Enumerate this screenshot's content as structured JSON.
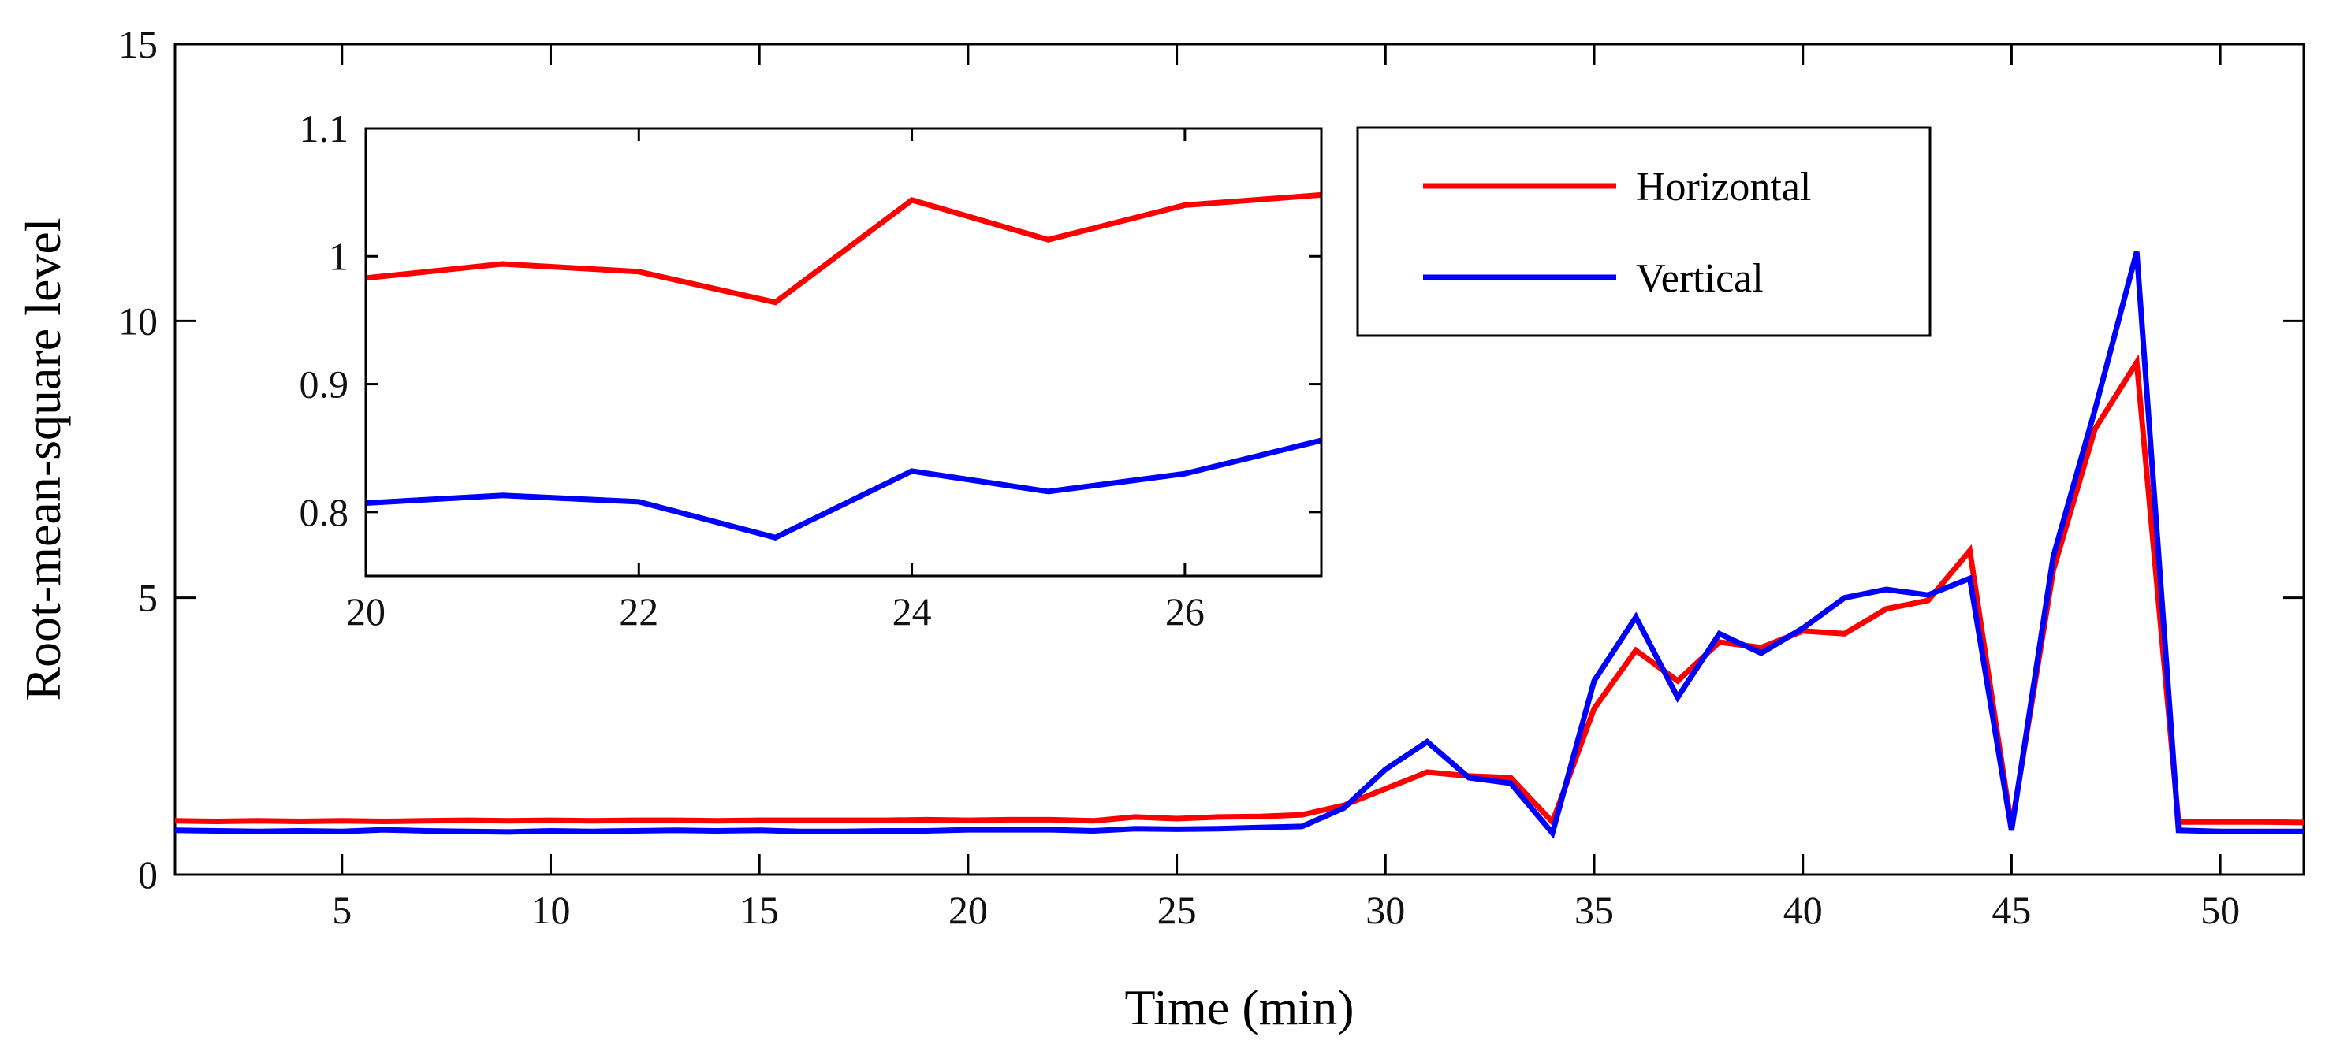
{
  "chart_data": [
    {
      "type": "line",
      "role": "main",
      "title": "",
      "xlabel": "Time (min)",
      "ylabel": "Root-mean-square level",
      "xlim": [
        1,
        52
      ],
      "ylim": [
        0,
        15
      ],
      "xticks": [
        5,
        10,
        15,
        20,
        25,
        30,
        35,
        40,
        45,
        50
      ],
      "xtick_labels": [
        "5",
        "10",
        "15",
        "20",
        "25",
        "30",
        "35",
        "40",
        "45",
        "50"
      ],
      "yticks": [
        0,
        5,
        10,
        15
      ],
      "ytick_labels": [
        "0",
        "5",
        "10",
        "15"
      ],
      "grid": false,
      "legend_position": "top-right",
      "x": [
        1,
        2,
        3,
        4,
        5,
        6,
        7,
        8,
        9,
        10,
        11,
        12,
        13,
        14,
        15,
        16,
        17,
        18,
        19,
        20,
        21,
        22,
        23,
        24,
        25,
        26,
        27,
        28,
        29,
        30,
        31,
        32,
        33,
        34,
        35,
        36,
        37,
        38,
        39,
        40,
        41,
        42,
        43,
        44,
        45,
        46,
        47,
        48,
        49,
        50,
        51,
        52
      ],
      "series": [
        {
          "name": "Horizontal",
          "color": "#ff0000",
          "values": [
            0.97,
            0.96,
            0.97,
            0.96,
            0.97,
            0.96,
            0.97,
            0.98,
            0.97,
            0.98,
            0.97,
            0.98,
            0.98,
            0.97,
            0.98,
            0.98,
            0.98,
            0.98,
            0.99,
            0.98,
            0.99,
            0.99,
            0.97,
            1.04,
            1.01,
            1.04,
            1.05,
            1.08,
            1.25,
            1.55,
            1.85,
            1.78,
            1.75,
            0.95,
            3.0,
            4.05,
            3.5,
            4.2,
            4.1,
            4.4,
            4.35,
            4.8,
            4.95,
            5.85,
            0.85,
            5.5,
            8.05,
            9.25,
            0.95,
            0.95,
            0.95,
            0.94
          ]
        },
        {
          "name": "Vertical",
          "color": "#0000ff",
          "values": [
            0.8,
            0.79,
            0.78,
            0.79,
            0.78,
            0.81,
            0.79,
            0.78,
            0.77,
            0.79,
            0.78,
            0.79,
            0.8,
            0.79,
            0.8,
            0.78,
            0.78,
            0.79,
            0.79,
            0.81,
            0.81,
            0.81,
            0.79,
            0.83,
            0.82,
            0.83,
            0.85,
            0.87,
            1.2,
            1.9,
            2.4,
            1.75,
            1.65,
            0.75,
            3.5,
            4.65,
            3.2,
            4.35,
            4.0,
            4.45,
            5.0,
            5.15,
            5.05,
            5.35,
            0.8,
            5.75,
            8.4,
            11.25,
            0.8,
            0.78,
            0.78,
            0.78
          ]
        }
      ]
    },
    {
      "type": "line",
      "role": "inset",
      "title": "",
      "xlabel": "",
      "ylabel": "",
      "xlim": [
        20,
        27
      ],
      "ylim": [
        0.75,
        1.1
      ],
      "xticks": [
        20,
        22,
        24,
        26
      ],
      "xtick_labels": [
        "20",
        "22",
        "24",
        "26"
      ],
      "yticks": [
        0.8,
        0.9,
        1,
        1.1
      ],
      "ytick_labels": [
        "0.8",
        "0.9",
        "1",
        "1.1"
      ],
      "grid": false,
      "x": [
        20,
        21,
        22,
        23,
        24,
        25,
        26,
        27
      ],
      "series": [
        {
          "name": "Horizontal",
          "color": "#ff0000",
          "values": [
            0.983,
            0.994,
            0.988,
            0.964,
            1.044,
            1.013,
            1.04,
            1.048
          ]
        },
        {
          "name": "Vertical",
          "color": "#0000ff",
          "values": [
            0.807,
            0.813,
            0.808,
            0.78,
            0.832,
            0.816,
            0.83,
            0.856
          ]
        }
      ]
    }
  ]
}
